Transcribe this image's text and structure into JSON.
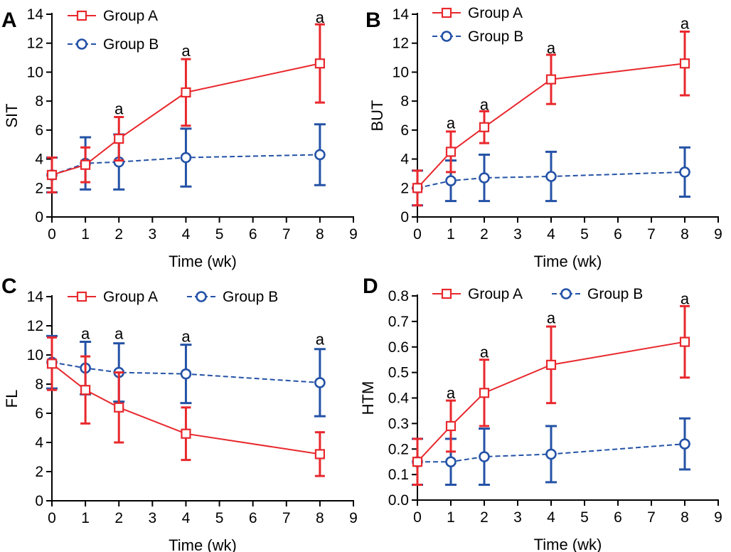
{
  "colors": {
    "group_a": "#e8282d",
    "group_b": "#2452a6",
    "axis": "#000000"
  },
  "chart_data": [
    {
      "type": "line",
      "panel_letter": "A",
      "xlabel": "Time (wk)",
      "ylabel": "SIT",
      "xlim": [
        0,
        9
      ],
      "ylim": [
        0,
        14
      ],
      "xticks": [
        0,
        1,
        2,
        3,
        4,
        5,
        6,
        7,
        8,
        9
      ],
      "yticks": [
        0,
        2,
        4,
        6,
        8,
        10,
        12,
        14
      ],
      "tick_decimals": 0,
      "legend": {
        "layout": "vertical",
        "placement": "top-left"
      },
      "x": [
        0,
        1,
        2,
        4,
        8
      ],
      "series": [
        {
          "name": "Group A",
          "marker": "square",
          "values": [
            2.9,
            3.6,
            5.4,
            8.6,
            10.6
          ],
          "error": [
            1.2,
            1.2,
            1.5,
            2.3,
            2.7
          ]
        },
        {
          "name": "Group B",
          "marker": "circle",
          "values": [
            2.9,
            3.7,
            3.8,
            4.1,
            4.3
          ],
          "error": [
            1.2,
            1.8,
            1.9,
            2.0,
            2.1
          ]
        }
      ],
      "significance": [
        {
          "x": 2,
          "y": 7.4,
          "label": "a"
        },
        {
          "x": 4,
          "y": 11.4,
          "label": "a"
        },
        {
          "x": 8,
          "y": 13.7,
          "label": "a"
        }
      ]
    },
    {
      "type": "line",
      "panel_letter": "B",
      "xlabel": "Time (wk)",
      "ylabel": "BUT",
      "xlim": [
        0,
        9
      ],
      "ylim": [
        0,
        14
      ],
      "xticks": [
        0,
        1,
        2,
        3,
        4,
        5,
        6,
        7,
        8,
        9
      ],
      "yticks": [
        0,
        2,
        4,
        6,
        8,
        10,
        12,
        14
      ],
      "tick_decimals": 0,
      "legend": {
        "layout": "vertical",
        "placement": "top-left"
      },
      "x": [
        0,
        1,
        2,
        4,
        8
      ],
      "series": [
        {
          "name": "Group A",
          "marker": "square",
          "values": [
            2.0,
            4.5,
            6.2,
            9.5,
            10.6
          ],
          "error": [
            1.2,
            1.4,
            1.1,
            1.7,
            2.2
          ]
        },
        {
          "name": "Group B",
          "marker": "circle",
          "values": [
            2.0,
            2.5,
            2.7,
            2.8,
            3.1
          ],
          "error": [
            1.2,
            1.4,
            1.6,
            1.7,
            1.7
          ]
        }
      ],
      "significance": [
        {
          "x": 1,
          "y": 6.4,
          "label": "a"
        },
        {
          "x": 2,
          "y": 7.7,
          "label": "a"
        },
        {
          "x": 4,
          "y": 11.6,
          "label": "a"
        },
        {
          "x": 8,
          "y": 13.3,
          "label": "a"
        }
      ]
    },
    {
      "type": "line",
      "panel_letter": "C",
      "xlabel": "Time (wk)",
      "ylabel": "FL",
      "xlim": [
        0,
        9
      ],
      "ylim": [
        0,
        14
      ],
      "xticks": [
        0,
        1,
        2,
        3,
        4,
        5,
        6,
        7,
        8,
        9
      ],
      "yticks": [
        0,
        2,
        4,
        6,
        8,
        10,
        12,
        14
      ],
      "tick_decimals": 0,
      "legend": {
        "layout": "horizontal",
        "placement": "top"
      },
      "x": [
        0,
        1,
        2,
        4,
        8
      ],
      "series": [
        {
          "name": "Group A",
          "marker": "square",
          "values": [
            9.4,
            7.6,
            6.4,
            4.6,
            3.2
          ],
          "error": [
            1.8,
            2.3,
            2.4,
            1.8,
            1.5
          ]
        },
        {
          "name": "Group B",
          "marker": "circle",
          "values": [
            9.5,
            9.1,
            8.8,
            8.7,
            8.1
          ],
          "error": [
            1.8,
            1.8,
            2.0,
            2.0,
            2.3
          ]
        }
      ],
      "significance": [
        {
          "x": 1,
          "y": 11.4,
          "label": "a"
        },
        {
          "x": 2,
          "y": 11.4,
          "label": "a"
        },
        {
          "x": 4,
          "y": 11.2,
          "label": "a"
        },
        {
          "x": 8,
          "y": 11.0,
          "label": "a"
        }
      ]
    },
    {
      "type": "line",
      "panel_letter": "D",
      "xlabel": "Time (wk)",
      "ylabel": "HTM",
      "xlim": [
        0,
        9
      ],
      "ylim": [
        0,
        0.8
      ],
      "xticks": [
        0,
        1,
        2,
        3,
        4,
        5,
        6,
        7,
        8,
        9
      ],
      "yticks": [
        0,
        0.1,
        0.2,
        0.3,
        0.4,
        0.5,
        0.6,
        0.7,
        0.8
      ],
      "tick_decimals": 1,
      "legend": {
        "layout": "horizontal",
        "placement": "top"
      },
      "x": [
        0,
        1,
        2,
        4,
        8
      ],
      "series": [
        {
          "name": "Group A",
          "marker": "square",
          "values": [
            0.15,
            0.29,
            0.42,
            0.53,
            0.62
          ],
          "error": [
            0.09,
            0.1,
            0.13,
            0.15,
            0.14
          ]
        },
        {
          "name": "Group B",
          "marker": "circle",
          "values": [
            0.15,
            0.15,
            0.17,
            0.18,
            0.22
          ],
          "error": [
            0.09,
            0.09,
            0.11,
            0.11,
            0.1
          ]
        }
      ],
      "significance": [
        {
          "x": 1,
          "y": 0.415,
          "label": "a"
        },
        {
          "x": 2,
          "y": 0.575,
          "label": "a"
        },
        {
          "x": 4,
          "y": 0.71,
          "label": "a"
        },
        {
          "x": 8,
          "y": 0.785,
          "label": "a"
        }
      ]
    }
  ]
}
